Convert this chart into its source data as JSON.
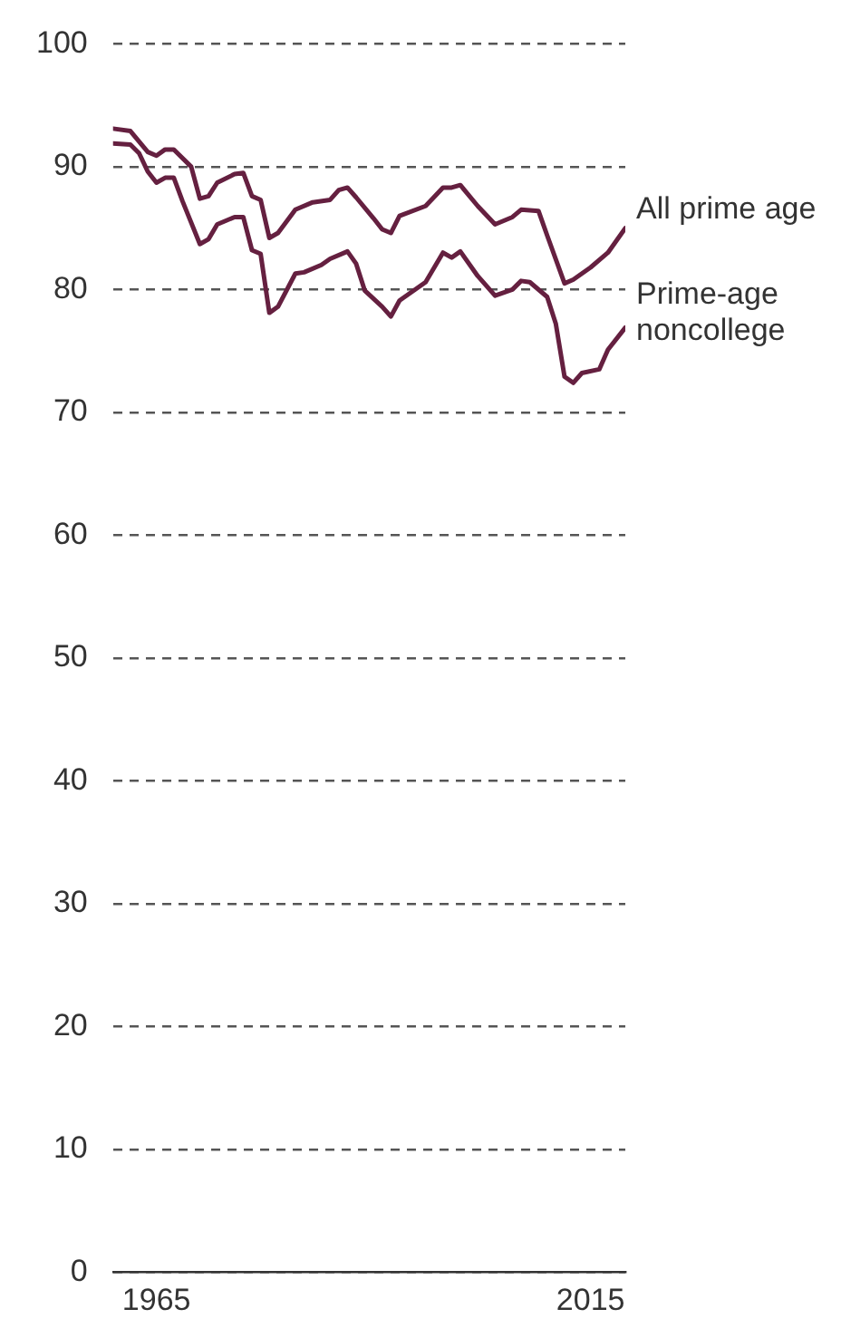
{
  "chart_data": {
    "type": "line",
    "xlim": [
      1960,
      2019
    ],
    "xticks": [
      1965,
      2015
    ],
    "ylim": [
      0,
      100
    ],
    "yticks": [
      0,
      10,
      20,
      30,
      40,
      50,
      60,
      70,
      80,
      90,
      100
    ],
    "grid": "y",
    "legend": false,
    "marker": "none",
    "line_style": "solid",
    "series": [
      {
        "name": "All prime age",
        "color": "#652040",
        "x": [
          1960,
          1962,
          1964,
          1965,
          1966,
          1967,
          1969,
          1970,
          1971,
          1972,
          1974,
          1975,
          1976,
          1977,
          1978,
          1979,
          1981,
          1983,
          1985,
          1986,
          1987,
          1988,
          1990,
          1991,
          1992,
          1993,
          1996,
          1998,
          1999,
          2000,
          2002,
          2004,
          2006,
          2007,
          2009,
          2010,
          2012,
          2013,
          2015,
          2017,
          2019
        ],
        "values": [
          93.1,
          92.9,
          91.2,
          90.9,
          91.4,
          91.4,
          90.0,
          87.4,
          87.6,
          88.7,
          89.4,
          89.5,
          87.6,
          87.3,
          84.2,
          84.6,
          86.5,
          87.1,
          87.3,
          88.1,
          88.3,
          87.5,
          85.8,
          84.9,
          84.6,
          86.0,
          86.8,
          88.3,
          88.3,
          88.5,
          86.8,
          85.3,
          85.9,
          86.5,
          86.4,
          84.4,
          80.5,
          80.8,
          81.8,
          83.0,
          85.0
        ]
      },
      {
        "name": "Prime-age noncollege",
        "color": "#652040",
        "x": [
          1960,
          1962,
          1963,
          1964,
          1965,
          1966,
          1967,
          1968,
          1970,
          1971,
          1972,
          1974,
          1975,
          1976,
          1977,
          1978,
          1979,
          1981,
          1982,
          1984,
          1985,
          1987,
          1988,
          1989,
          1991,
          1992,
          1993,
          1996,
          1998,
          1999,
          2000,
          2002,
          2004,
          2006,
          2007,
          2008,
          2010,
          2011,
          2012,
          2013,
          2014,
          2016,
          2017,
          2019
        ],
        "values": [
          91.9,
          91.8,
          91.1,
          89.6,
          88.7,
          89.1,
          89.1,
          87.2,
          83.7,
          84.1,
          85.3,
          85.9,
          85.9,
          83.2,
          82.9,
          78.1,
          78.6,
          81.3,
          81.4,
          82.0,
          82.5,
          83.1,
          82.1,
          79.9,
          78.6,
          77.8,
          79.1,
          80.6,
          83.0,
          82.6,
          83.1,
          81.1,
          79.5,
          80.0,
          80.7,
          80.6,
          79.4,
          77.2,
          72.9,
          72.4,
          73.2,
          73.5,
          75.1,
          76.9
        ]
      }
    ]
  }
}
